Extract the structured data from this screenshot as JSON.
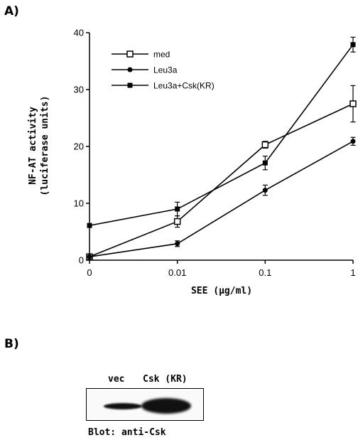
{
  "panel_a": {
    "label": "A)"
  },
  "panel_b": {
    "label": "B)",
    "lane_labels": [
      "vec",
      "Csk (KR)"
    ],
    "blot_caption": "Blot: anti-Csk"
  },
  "chart_data": {
    "type": "line",
    "ylabel_line1": "NF-AT activity",
    "ylabel_line2": "(luciferase units)",
    "xlabel": "SEE (µg/ml)",
    "x_ticks": [
      "0",
      "0.01",
      "0.1",
      "1"
    ],
    "y_ticks": [
      "0",
      "10",
      "20",
      "30",
      "40"
    ],
    "ylim": [
      0,
      40
    ],
    "legend_placement": "top-left",
    "series": [
      {
        "name": "med",
        "marker": "open-square",
        "values": [
          0.6,
          6.8,
          20.3,
          27.5
        ],
        "errors": [
          0,
          1.0,
          0.6,
          3.2
        ]
      },
      {
        "name": "Leu3a",
        "marker": "filled-circle",
        "values": [
          0.6,
          2.9,
          12.3,
          20.9
        ],
        "errors": [
          0,
          0.5,
          0.9,
          0.7
        ]
      },
      {
        "name": "Leu3a+Csk(KR)",
        "marker": "filled-square",
        "values": [
          6.1,
          9.0,
          17.1,
          37.9
        ],
        "errors": [
          0,
          1.2,
          1.2,
          1.3
        ]
      }
    ]
  }
}
